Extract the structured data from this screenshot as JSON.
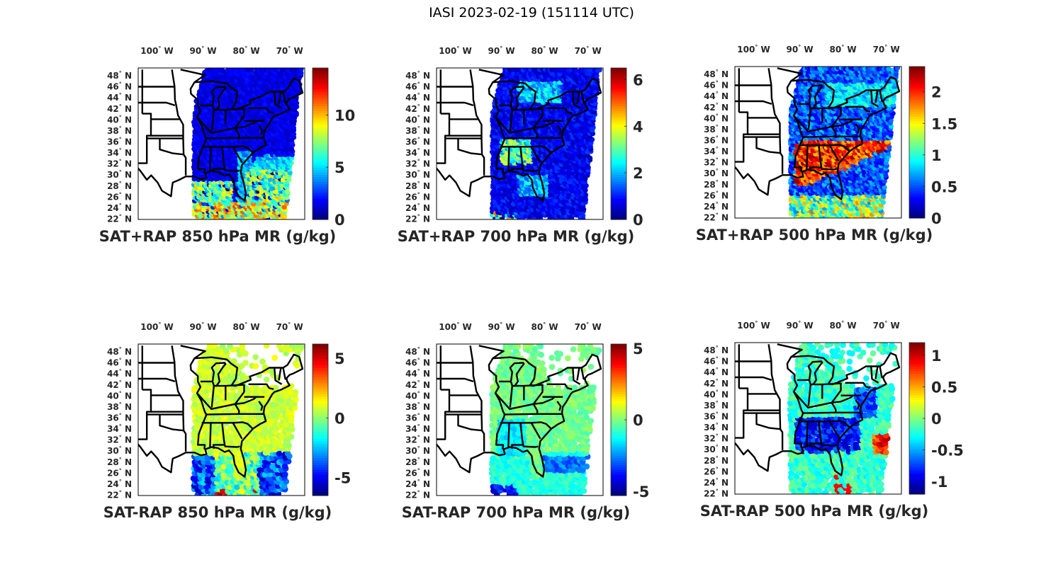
{
  "suptitle": "IASI 2023-02-19 (151114 UTC)",
  "chart_data": [
    {
      "type": "heatmap",
      "panel": "top-left",
      "title": "SAT+RAP 850 hPa MR (g/kg)",
      "colormap": "jet",
      "clim": [
        0,
        14.5
      ],
      "colorbar_ticks": [
        0,
        5,
        10
      ],
      "colorbar_tick_labels": [
        "0",
        "5",
        "10"
      ],
      "lon_ticks": [
        "100° W",
        "90° W",
        "80° W",
        "70° W"
      ],
      "lat_ticks": [
        "48° N",
        "46° N",
        "44° N",
        "42° N",
        "40° N",
        "38° N",
        "36° N",
        "34° N",
        "32° N",
        "30° N",
        "28° N",
        "26° N",
        "24° N",
        "22° N"
      ],
      "field": "850_total",
      "description": "Mostly low values (~0-2) over land; moist values (~5-11) over Gulf of Mexico and Atlantic south of 32N"
    },
    {
      "type": "heatmap",
      "panel": "top-center",
      "title": "SAT+RAP 700 hPa MR (g/kg)",
      "colormap": "jet",
      "clim": [
        0,
        6.5
      ],
      "colorbar_ticks": [
        0,
        2,
        4,
        6
      ],
      "colorbar_tick_labels": [
        "0",
        "2",
        "4",
        "6"
      ],
      "lon_ticks": [
        "100° W",
        "90° W",
        "80° W",
        "70° W"
      ],
      "lat_ticks": [
        "48° N",
        "46° N",
        "44° N",
        "42° N",
        "40° N",
        "38° N",
        "36° N",
        "34° N",
        "32° N",
        "30° N",
        "28° N",
        "26° N",
        "24° N",
        "22° N"
      ],
      "field": "700_total",
      "description": "Mostly low values (~0-1.5) with moister bands (~2-4) over Great Lakes and Southeast"
    },
    {
      "type": "heatmap",
      "panel": "top-right",
      "title": "SAT+RAP 500 hPa MR (g/kg)",
      "colormap": "jet",
      "clim": [
        0,
        2.4
      ],
      "colorbar_ticks": [
        0,
        0.5,
        1,
        1.5,
        2
      ],
      "colorbar_tick_labels": [
        "0",
        "0.5",
        "1",
        "1.5",
        "2"
      ],
      "lon_ticks": [
        "100° W",
        "90° W",
        "80° W",
        "70° W"
      ],
      "lat_ticks": [
        "48° N",
        "46° N",
        "44° N",
        "42° N",
        "40° N",
        "38° N",
        "36° N",
        "34° N",
        "32° N",
        "30° N",
        "28° N",
        "26° N",
        "24° N",
        "22° N"
      ],
      "field": "500_total",
      "description": "Moist plume (~1.5-2.4) from Gulf states across Carolinas into Atlantic; dry (~0.2-0.6) elsewhere"
    },
    {
      "type": "heatmap",
      "panel": "bottom-left",
      "title": "SAT-RAP 850 hPa MR (g/kg)",
      "colormap": "jet",
      "clim": [
        -6.5,
        6.2
      ],
      "colorbar_ticks": [
        -5,
        0,
        5
      ],
      "colorbar_tick_labels": [
        "-5",
        "0",
        "5"
      ],
      "lon_ticks": [
        "100° W",
        "90° W",
        "80° W",
        "70° W"
      ],
      "lat_ticks": [
        "48° N",
        "46° N",
        "44° N",
        "42° N",
        "40° N",
        "38° N",
        "36° N",
        "34° N",
        "32° N",
        "30° N",
        "28° N",
        "26° N",
        "24° N",
        "22° N"
      ],
      "field": "850_diff",
      "description": "Near-zero differences (~0 to 1) over land; strongly negative (~-3 to -6) and mixed positive over Gulf"
    },
    {
      "type": "heatmap",
      "panel": "bottom-center",
      "title": "SAT-RAP 700 hPa MR (g/kg)",
      "colormap": "jet",
      "clim": [
        -5.3,
        5.3
      ],
      "colorbar_ticks": [
        -5,
        0,
        5
      ],
      "colorbar_tick_labels": [
        "-5",
        "0",
        "5"
      ],
      "lon_ticks": [
        "100° W",
        "90° W",
        "80° W",
        "70° W"
      ],
      "lat_ticks": [
        "48° N",
        "46° N",
        "44° N",
        "42° N",
        "40° N",
        "38° N",
        "36° N",
        "34° N",
        "32° N",
        "30° N",
        "28° N",
        "26° N",
        "24° N",
        "22° N"
      ],
      "field": "700_diff",
      "description": "Mostly near zero (~-1 to 0.5); slightly negative (~-2) over Gulf states, negative band offshore"
    },
    {
      "type": "heatmap",
      "panel": "bottom-right",
      "title": "SAT-RAP 500 hPa MR (g/kg)",
      "colormap": "jet",
      "clim": [
        -1.2,
        1.2
      ],
      "colorbar_ticks": [
        -1,
        -0.5,
        0,
        0.5,
        1
      ],
      "colorbar_tick_labels": [
        "-1",
        "-0.5",
        "0",
        "0.5",
        "1"
      ],
      "lon_ticks": [
        "100° W",
        "90° W",
        "80° W",
        "70° W"
      ],
      "lat_ticks": [
        "48° N",
        "46° N",
        "44° N",
        "42° N",
        "40° N",
        "38° N",
        "36° N",
        "34° N",
        "32° N",
        "30° N",
        "28° N",
        "26° N",
        "24° N",
        "22° N"
      ],
      "field": "500_diff",
      "description": "Near zero (~-0.2) in north; negative (~-0.8 to -1.1) over Southeast; positive (~0.6-1) offshore Atlantic"
    }
  ]
}
